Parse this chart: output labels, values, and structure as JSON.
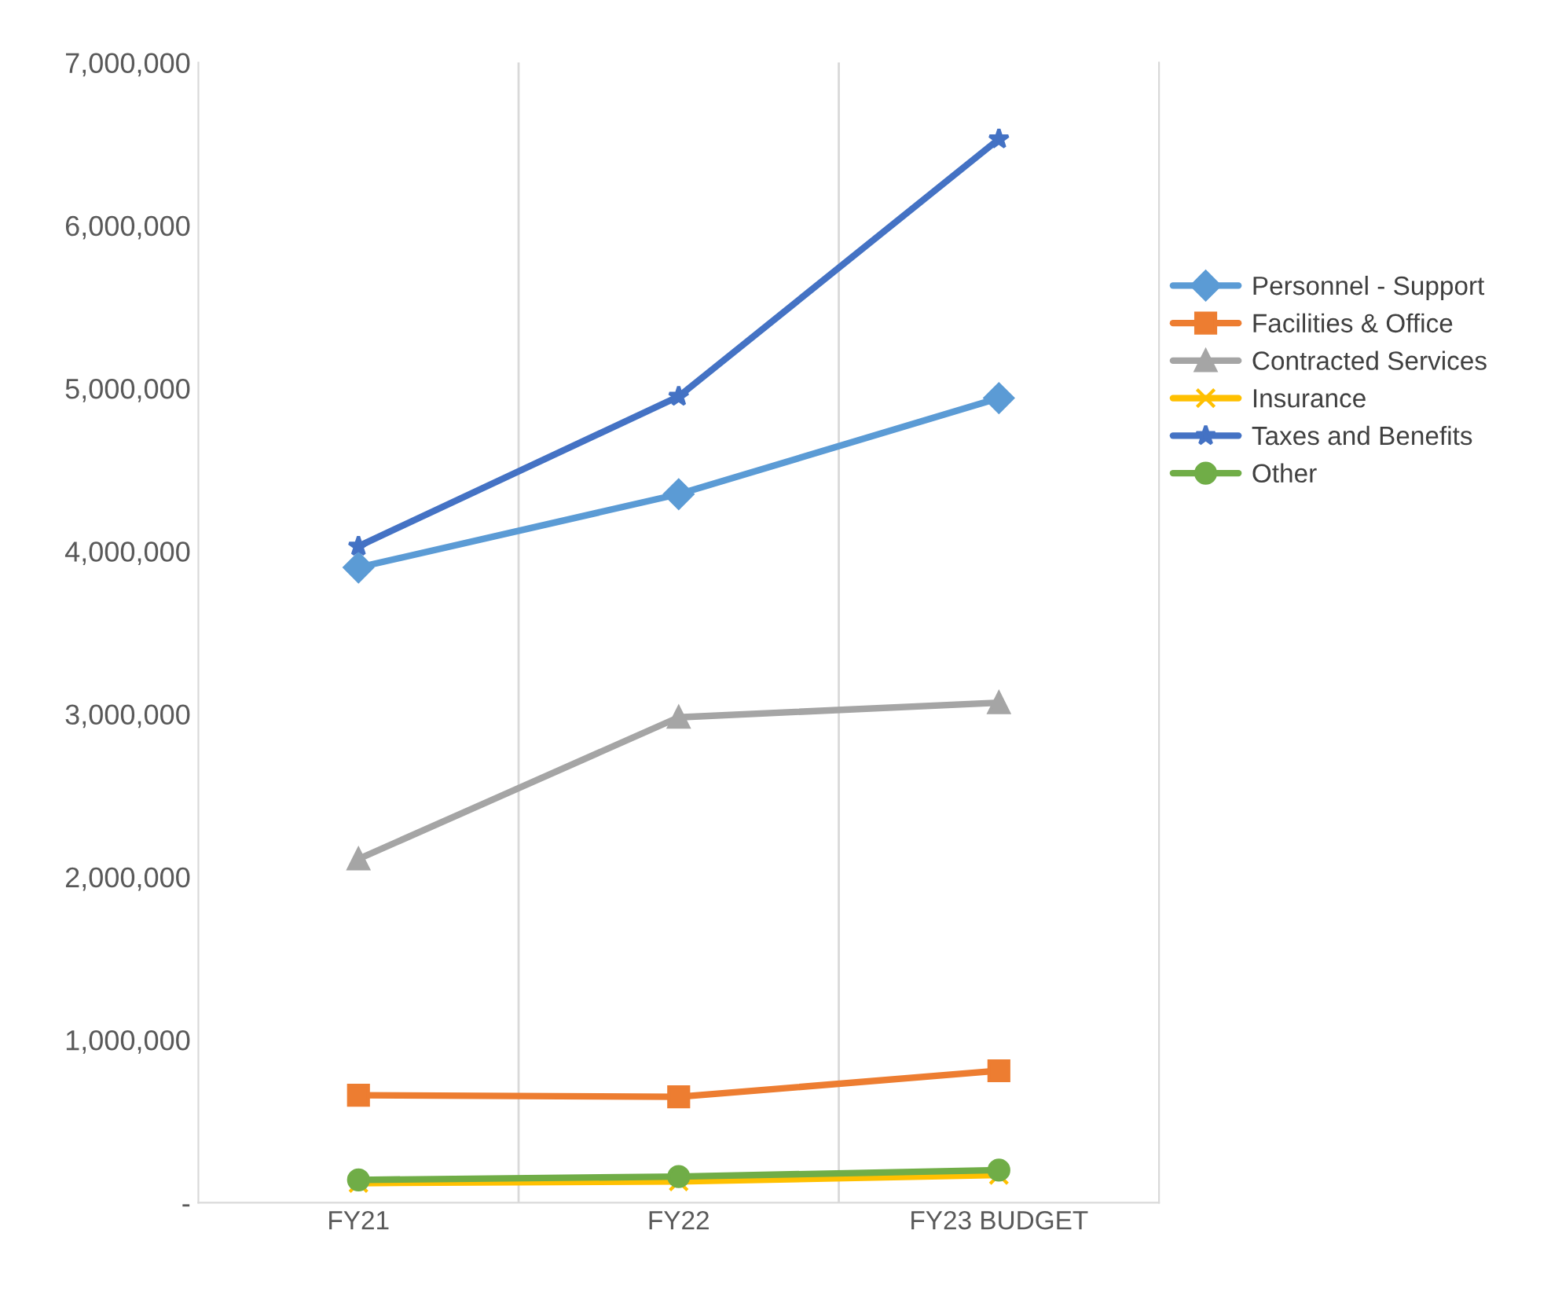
{
  "chart_data": {
    "type": "line",
    "categories": [
      "FY21",
      "FY22",
      "FY23 BUDGET"
    ],
    "ylim": [
      0,
      7000000
    ],
    "yticks": [
      {
        "value": 0,
        "label": "-"
      },
      {
        "value": 1000000,
        "label": "1,000,000"
      },
      {
        "value": 2000000,
        "label": "2,000,000"
      },
      {
        "value": 3000000,
        "label": "3,000,000"
      },
      {
        "value": 4000000,
        "label": "4,000,000"
      },
      {
        "value": 5000000,
        "label": "5,000,000"
      },
      {
        "value": 6000000,
        "label": "6,000,000"
      },
      {
        "value": 7000000,
        "label": "7,000,000"
      }
    ],
    "grid": "x",
    "legend": "right",
    "series": [
      {
        "name": "Personnel - Support",
        "color": "#5b9bd5",
        "marker": "diamond",
        "values": [
          3900000,
          4350000,
          4940000
        ]
      },
      {
        "name": "Facilities & Office",
        "color": "#ed7d31",
        "marker": "square",
        "values": [
          660000,
          650000,
          810000
        ]
      },
      {
        "name": "Contracted Services",
        "color": "#a5a5a5",
        "marker": "triangle",
        "values": [
          2110000,
          2980000,
          3070000
        ]
      },
      {
        "name": "Insurance",
        "color": "#ffc000",
        "marker": "cross",
        "values": [
          120000,
          130000,
          170000
        ]
      },
      {
        "name": "Taxes and Benefits",
        "color": "#4472c4",
        "marker": "star",
        "values": [
          4030000,
          4950000,
          6530000
        ]
      },
      {
        "name": "Other",
        "color": "#70ad47",
        "marker": "circle",
        "values": [
          140000,
          160000,
          200000
        ]
      }
    ]
  }
}
